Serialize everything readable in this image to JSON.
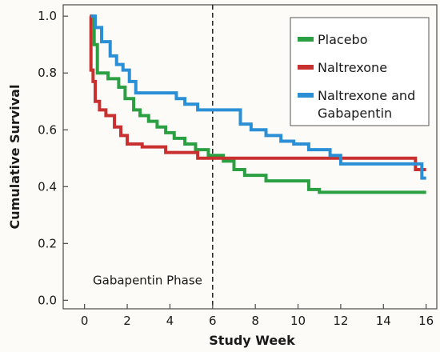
{
  "chart_data": {
    "type": "line",
    "step": true,
    "title": "",
    "xlabel": "Study Week",
    "ylabel": "Cumulative Survival",
    "xlim": [
      -1,
      16.5
    ],
    "ylim": [
      -0.03,
      1.04
    ],
    "xticks": [
      0,
      2,
      4,
      6,
      8,
      10,
      12,
      14,
      16
    ],
    "yticks": [
      0.0,
      0.2,
      0.4,
      0.6,
      0.8,
      1.0
    ],
    "ytick_labels": [
      "0.0",
      "0.2",
      "0.4",
      "0.6",
      "0.8",
      "1.0"
    ],
    "grid": false,
    "legend_position": "top-right",
    "annotations": [
      {
        "text": "Gabapentin Phase",
        "x": 0.5,
        "y": 0.07
      }
    ],
    "reference_lines": [
      {
        "orientation": "vertical",
        "x": 6,
        "style": "dashed"
      }
    ],
    "series": [
      {
        "name": "Placebo",
        "color": "#2aa043",
        "x": [
          0.25,
          0.45,
          0.6,
          1.1,
          1.6,
          1.9,
          2.3,
          2.6,
          3.0,
          3.4,
          3.8,
          4.2,
          4.7,
          5.2,
          5.8,
          6.5,
          7.0,
          7.5,
          8.5,
          9.5,
          10.5,
          11.0,
          11.5,
          12.5,
          14.0,
          16.0
        ],
        "y": [
          1.0,
          0.9,
          0.8,
          0.78,
          0.75,
          0.71,
          0.67,
          0.65,
          0.63,
          0.61,
          0.59,
          0.57,
          0.55,
          0.53,
          0.51,
          0.49,
          0.46,
          0.44,
          0.42,
          0.42,
          0.39,
          0.38,
          0.38,
          0.38,
          0.38,
          0.38
        ]
      },
      {
        "name": "Naltrexone",
        "color": "#c93130",
        "x": [
          0.25,
          0.3,
          0.4,
          0.5,
          0.7,
          1.0,
          1.4,
          1.7,
          2.0,
          2.7,
          3.8,
          5.3,
          6.0,
          8.0,
          10.0,
          12.0,
          15.5,
          16.0
        ],
        "y": [
          1.0,
          0.81,
          0.77,
          0.7,
          0.67,
          0.65,
          0.61,
          0.58,
          0.55,
          0.54,
          0.52,
          0.5,
          0.5,
          0.5,
          0.5,
          0.5,
          0.46,
          0.46
        ],
        "end_x": 16.0
      },
      {
        "name": "Naltrexone and Gabapentin",
        "color": "#2b8fd6",
        "x": [
          0.3,
          0.5,
          0.8,
          1.2,
          1.5,
          1.8,
          2.1,
          2.4,
          2.8,
          3.5,
          4.3,
          4.7,
          5.3,
          6.0,
          7.0,
          7.3,
          7.8,
          8.5,
          9.2,
          9.8,
          10.5,
          11.5,
          12.0,
          14.0,
          15.8,
          16.0
        ],
        "y": [
          1.0,
          0.96,
          0.91,
          0.86,
          0.83,
          0.81,
          0.77,
          0.73,
          0.73,
          0.73,
          0.71,
          0.69,
          0.67,
          0.67,
          0.67,
          0.62,
          0.6,
          0.58,
          0.56,
          0.55,
          0.53,
          0.51,
          0.48,
          0.48,
          0.43,
          0.43
        ]
      }
    ]
  }
}
